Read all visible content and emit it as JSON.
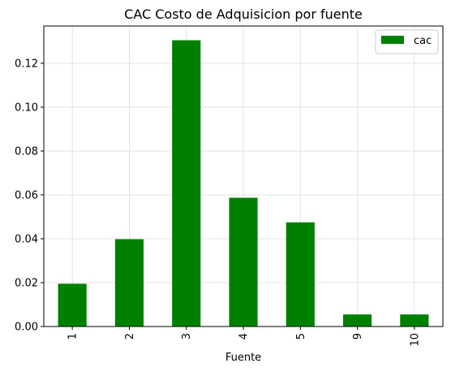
{
  "chart_data": {
    "type": "bar",
    "title": "CAC Costo de Adquisicion por fuente",
    "xlabel": "Fuente",
    "ylabel": "",
    "categories": [
      "1",
      "2",
      "3",
      "4",
      "5",
      "9",
      "10"
    ],
    "series": [
      {
        "name": "cac",
        "values": [
          0.0195,
          0.0398,
          0.1305,
          0.0587,
          0.0475,
          0.0055,
          0.0055
        ],
        "color": "#008000"
      }
    ],
    "ylim": [
      0,
      0.137
    ],
    "yticks": [
      0.0,
      0.02,
      0.04,
      0.06,
      0.08,
      0.1,
      0.12
    ],
    "ytick_labels": [
      "0.00",
      "0.02",
      "0.04",
      "0.06",
      "0.08",
      "0.10",
      "0.12"
    ],
    "grid": true,
    "legend_position": "top-right"
  }
}
